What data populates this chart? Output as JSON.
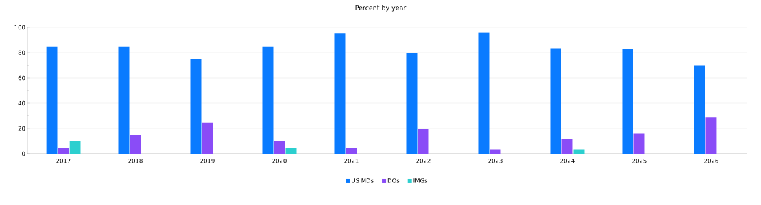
{
  "chart_data": {
    "type": "bar",
    "title": "Percent by year",
    "categories": [
      "2017",
      "2018",
      "2019",
      "2020",
      "2021",
      "2022",
      "2023",
      "2024",
      "2025",
      "2026"
    ],
    "series": [
      {
        "name": "US MDs",
        "color": "#0a7bff",
        "values": [
          84.5,
          84.5,
          75,
          84.5,
          95,
          80,
          96,
          83.5,
          83,
          70
        ]
      },
      {
        "name": "DOs",
        "color": "#8a4cf7",
        "values": [
          4.5,
          15,
          24.5,
          10,
          4.5,
          19.5,
          3.5,
          11.5,
          16,
          29
        ]
      },
      {
        "name": "IMGs",
        "color": "#2ccfcf",
        "values": [
          10,
          null,
          null,
          4.5,
          null,
          null,
          null,
          3.5,
          null,
          null
        ]
      }
    ],
    "ylim": [
      0,
      100
    ],
    "yticks": [
      0,
      20,
      40,
      60,
      80,
      100
    ],
    "grid": "y",
    "legend": "bottom"
  }
}
